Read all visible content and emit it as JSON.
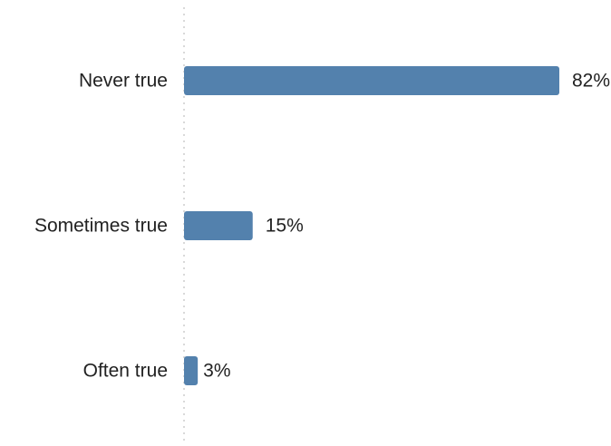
{
  "chart_data": {
    "type": "bar",
    "orientation": "horizontal",
    "categories": [
      "Never true",
      "Sometimes true",
      "Often true"
    ],
    "values": [
      82,
      15,
      3
    ],
    "value_labels": [
      "82%",
      "15%",
      "3%"
    ],
    "unit": "%",
    "xlim": [
      0,
      100
    ],
    "title": "",
    "xlabel": "",
    "ylabel": "",
    "grid": false,
    "legend": "none",
    "bar_color": "#5381ad",
    "axis_color": "#d9d9d9"
  }
}
